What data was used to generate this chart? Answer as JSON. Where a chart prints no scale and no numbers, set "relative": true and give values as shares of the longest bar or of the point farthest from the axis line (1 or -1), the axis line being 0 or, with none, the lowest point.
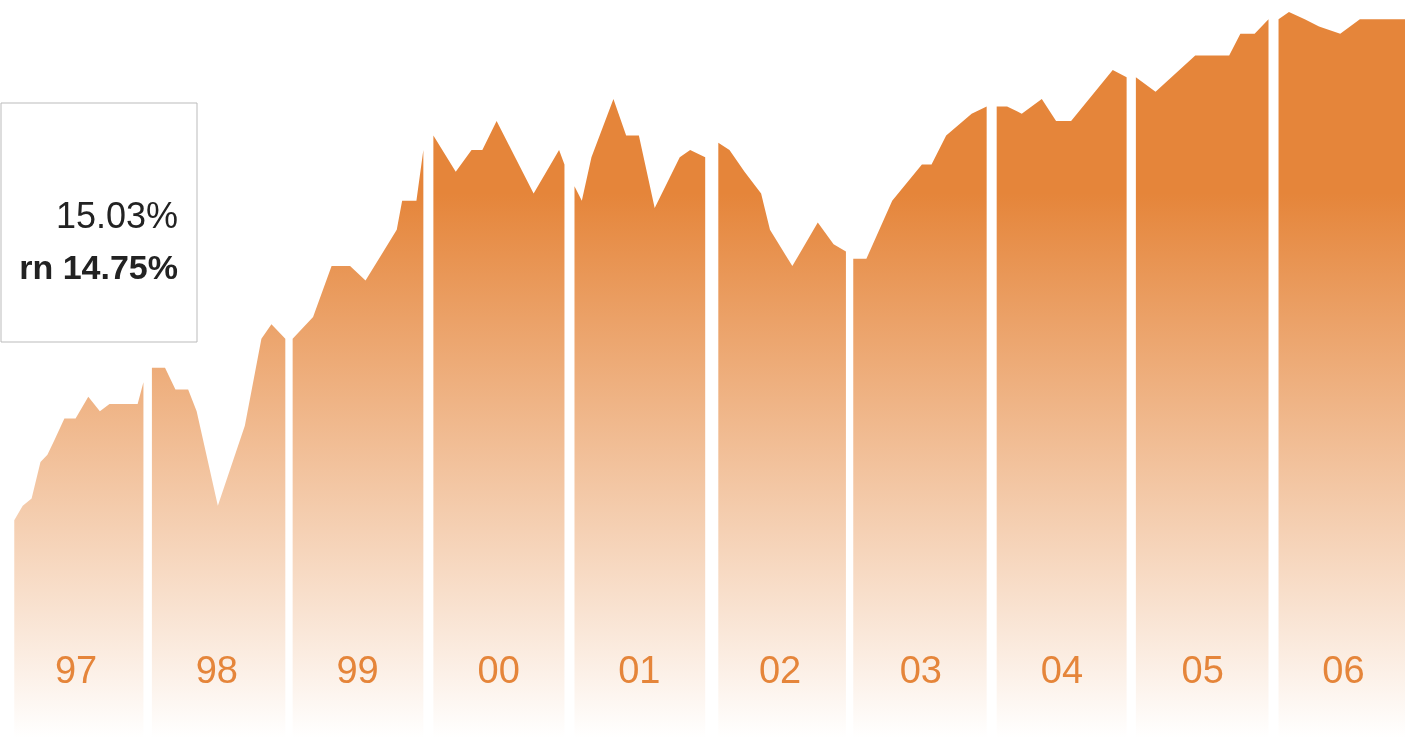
{
  "chart_data": {
    "type": "area",
    "relative": true,
    "x": [
      "1997-01-23",
      "1997-02-14",
      "1997-03-09",
      "1997-04-01",
      "1997-04-19",
      "1997-05-07",
      "1997-06-02",
      "1997-07-01",
      "1997-08-03",
      "1997-09-02",
      "1997-09-27",
      "1997-11-07",
      "1997-12-09",
      "1997-12-24",
      "1998-01-01",
      "1998-01-15",
      "1998-02-18",
      "1998-03-17",
      "1998-04-19",
      "1998-05-11",
      "1998-07-05",
      "1998-09-13",
      "1998-10-26",
      "1998-11-21",
      "1998-12-27",
      "1999-01-01",
      "1999-01-15",
      "1999-03-09",
      "1999-04-26",
      "1999-06-13",
      "1999-07-23",
      "1999-10-12",
      "1999-10-26",
      "1999-12-02",
      "1999-12-20",
      "2000-01-01",
      "2000-01-15",
      "2000-03-13",
      "2000-04-23",
      "2000-05-21",
      "2000-06-27",
      "2000-08-14",
      "2000-10-01",
      "2000-12-06",
      "2000-12-20",
      "2001-01-01",
      "2001-01-15",
      "2001-02-03",
      "2001-02-28",
      "2001-04-26",
      "2001-05-29",
      "2001-07-01",
      "2001-08-11",
      "2001-10-15",
      "2001-11-11",
      "2001-12-20",
      "2002-01-01",
      "2002-01-23",
      "2002-02-21",
      "2002-04-01",
      "2002-05-14",
      "2002-06-06",
      "2002-08-03",
      "2002-10-08",
      "2002-11-18",
      "2002-12-20",
      "2003-01-01",
      "2003-01-08",
      "2003-02-11",
      "2003-04-19",
      "2003-07-05",
      "2003-07-30",
      "2003-09-06",
      "2003-11-11",
      "2003-12-20",
      "2004-01-01",
      "2004-01-15",
      "2004-02-11",
      "2004-03-20",
      "2004-05-11",
      "2004-06-17",
      "2004-07-26",
      "2004-11-11",
      "2004-12-17",
      "2005-01-01",
      "2005-01-10",
      "2005-03-02",
      "2005-06-13",
      "2005-07-23",
      "2005-09-09",
      "2005-10-08",
      "2005-11-14",
      "2005-12-20",
      "2006-01-01",
      "2006-01-15",
      "2006-02-11",
      "2006-03-24",
      "2006-04-30",
      "2006-06-24",
      "2006-08-14",
      "2006-10-05",
      "2006-12-09"
    ],
    "series": [
      {
        "color": "#e5853a",
        "values": [
          0.3,
          0.32,
          0.33,
          0.38,
          0.39,
          0.41,
          0.44,
          0.44,
          0.47,
          0.45,
          0.46,
          0.46,
          0.46,
          0.49,
          null,
          0.51,
          0.51,
          0.48,
          0.48,
          0.45,
          0.32,
          0.43,
          0.55,
          0.57,
          0.55,
          null,
          0.55,
          0.58,
          0.65,
          0.65,
          0.63,
          0.7,
          0.74,
          0.74,
          0.81,
          null,
          0.83,
          0.78,
          0.81,
          0.81,
          0.85,
          0.8,
          0.75,
          0.81,
          0.79,
          null,
          0.76,
          0.74,
          0.8,
          0.88,
          0.83,
          0.83,
          0.73,
          0.8,
          0.81,
          0.8,
          null,
          0.82,
          0.81,
          0.78,
          0.75,
          0.7,
          0.65,
          0.71,
          0.68,
          0.67,
          null,
          0.66,
          0.66,
          0.74,
          0.79,
          0.79,
          0.83,
          0.86,
          0.87,
          null,
          0.87,
          0.87,
          0.86,
          0.88,
          0.85,
          0.85,
          0.92,
          0.91,
          null,
          0.91,
          0.89,
          0.94,
          0.94,
          0.94,
          0.97,
          0.97,
          0.99,
          null,
          0.99,
          1,
          0.99,
          0.98,
          0.97,
          0.99,
          0.99,
          0.99
        ]
      }
    ],
    "xlim": [
      "1996-12-17",
      "2006-12-09"
    ],
    "xticks": [
      {
        "value": "1997-07-01",
        "label": "97"
      },
      {
        "value": "1998-07-01",
        "label": "98"
      },
      {
        "value": "1999-07-01",
        "label": "99"
      },
      {
        "value": "2000-07-01",
        "label": "00"
      },
      {
        "value": "2001-07-01",
        "label": "01"
      },
      {
        "value": "2002-07-01",
        "label": "02"
      },
      {
        "value": "2003-07-01",
        "label": "03"
      },
      {
        "value": "2004-07-01",
        "label": "04"
      },
      {
        "value": "2005-07-01",
        "label": "05"
      },
      {
        "value": "2006-07-01",
        "label": "06"
      }
    ],
    "annotations": [
      "15.03%",
      "rn  14.75%"
    ],
    "grid": false
  }
}
